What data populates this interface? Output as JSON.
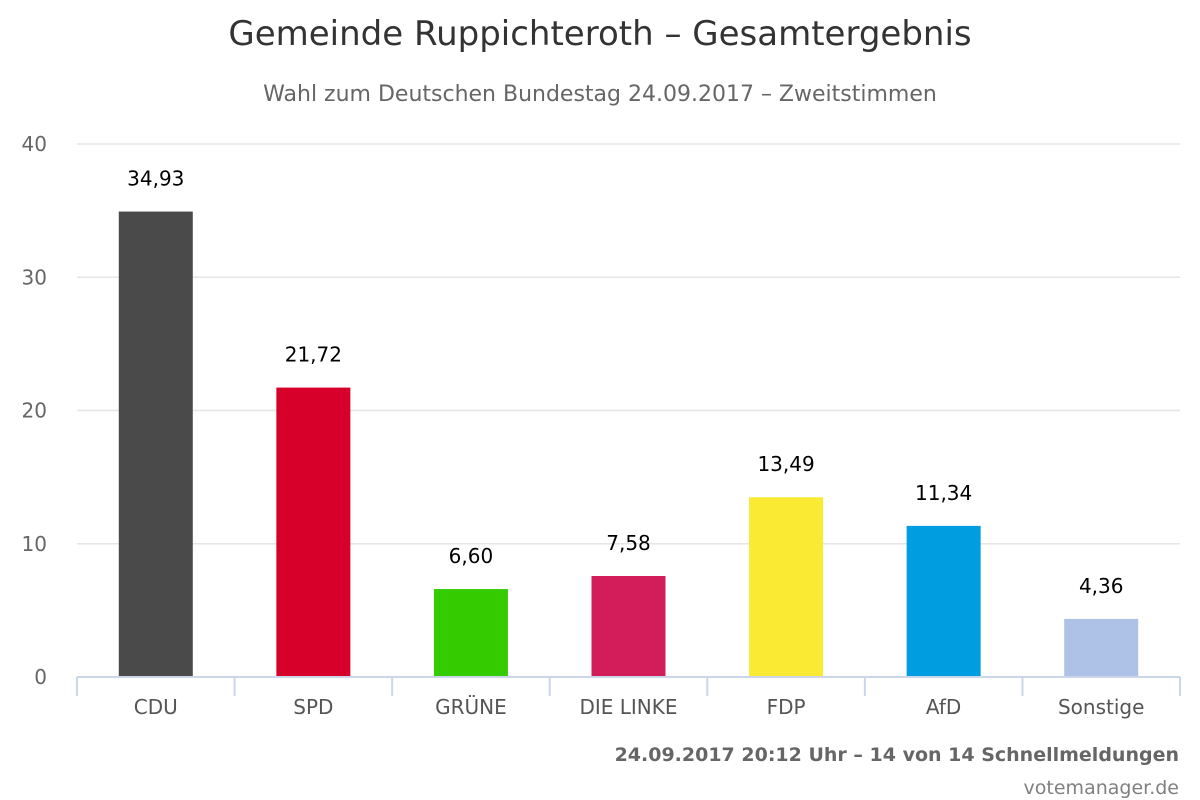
{
  "chart_data": {
    "type": "bar",
    "title": "Gemeinde Ruppichteroth – Gesamtergebnis",
    "subtitle": "Wahl zum Deutschen Bundestag 24.09.2017 – Zweitstimmen",
    "categories": [
      "CDU",
      "SPD",
      "GRÜNE",
      "DIE LINKE",
      "FDP",
      "AfD",
      "Sonstige"
    ],
    "values": [
      34.93,
      21.72,
      6.6,
      7.58,
      13.49,
      11.34,
      4.36
    ],
    "value_labels": [
      "34,93",
      "21,72",
      "6,60",
      "7,58",
      "13,49",
      "11,34",
      "4,36"
    ],
    "colors": [
      "#4a4a4a",
      "#d7002b",
      "#34cc00",
      "#d31d5a",
      "#faea33",
      "#009ee0",
      "#aec1e6"
    ],
    "xlabel": "",
    "ylabel": "",
    "ylim": [
      0,
      40
    ],
    "yticks": [
      0,
      10,
      20,
      30,
      40
    ],
    "grid": true,
    "legend": "none"
  },
  "footer": {
    "meta": "24.09.2017 20:12 Uhr – 14 von 14 Schnellmeldungen",
    "credit": "votemanager.de"
  }
}
